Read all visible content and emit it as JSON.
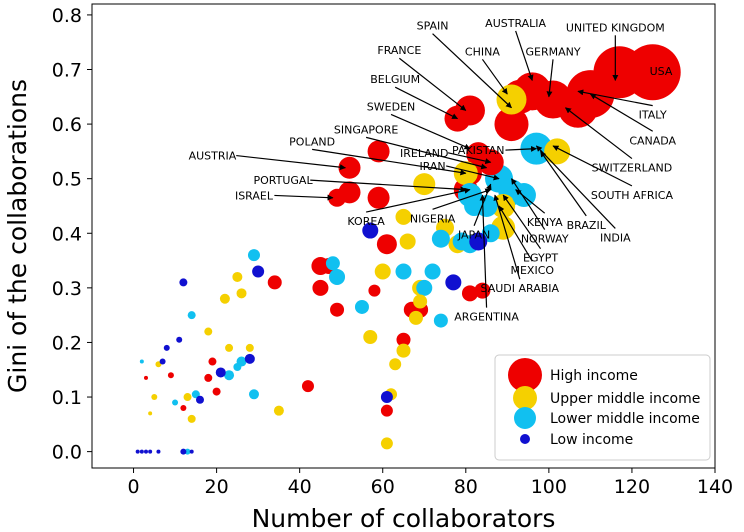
{
  "chart_data": {
    "type": "scatter",
    "xlabel": "Number of collaborators",
    "ylabel": "Gini of the collaborations",
    "xlim": [
      -10,
      140
    ],
    "ylim": [
      -0.03,
      0.82
    ],
    "xticks": [
      0,
      20,
      40,
      60,
      80,
      100,
      120,
      140
    ],
    "yticks": [
      0.0,
      0.1,
      0.2,
      0.3,
      0.4,
      0.5,
      0.6,
      0.7,
      0.8
    ],
    "ytick_labels": [
      "0.0",
      "0.1",
      "0.2",
      "0.3",
      "0.4",
      "0.5",
      "0.6",
      "0.7",
      "0.8"
    ],
    "grid": false,
    "legend_position": "bottom-right",
    "colors": {
      "high": "#ee0000",
      "upper": "#f5d000",
      "lower": "#11c0f0",
      "low": "#1010d0"
    },
    "series": [
      {
        "name": "High income",
        "key": "high",
        "points": [
          [
            125,
            0.695,
            28
          ],
          [
            117,
            0.695,
            26
          ],
          [
            110,
            0.655,
            24
          ],
          [
            107,
            0.63,
            20
          ],
          [
            101,
            0.645,
            19
          ],
          [
            96,
            0.66,
            19
          ],
          [
            93,
            0.65,
            17
          ],
          [
            91,
            0.6,
            17
          ],
          [
            81,
            0.625,
            15
          ],
          [
            78,
            0.61,
            13
          ],
          [
            86,
            0.53,
            13
          ],
          [
            83,
            0.545,
            12
          ],
          [
            81,
            0.51,
            12
          ],
          [
            80,
            0.48,
            12
          ],
          [
            59,
            0.55,
            11
          ],
          [
            52,
            0.52,
            11
          ],
          [
            52,
            0.475,
            11
          ],
          [
            49,
            0.465,
            9
          ],
          [
            59,
            0.465,
            11
          ],
          [
            61,
            0.38,
            10
          ],
          [
            45,
            0.34,
            9
          ],
          [
            45,
            0.3,
            8
          ],
          [
            47,
            0.34,
            8
          ],
          [
            49,
            0.26,
            7
          ],
          [
            34,
            0.31,
            7
          ],
          [
            67,
            0.26,
            8
          ],
          [
            69,
            0.26,
            8
          ],
          [
            81,
            0.29,
            8
          ],
          [
            84,
            0.295,
            8
          ],
          [
            65,
            0.205,
            7
          ],
          [
            42,
            0.12,
            6
          ],
          [
            61,
            0.075,
            6
          ],
          [
            58,
            0.295,
            6
          ],
          [
            20,
            0.11,
            4
          ],
          [
            19,
            0.165,
            4
          ],
          [
            18,
            0.135,
            4
          ],
          [
            12,
            0.08,
            3
          ],
          [
            9,
            0.14,
            3
          ],
          [
            3,
            0.135,
            2
          ]
        ]
      },
      {
        "name": "Upper middle income",
        "key": "upper",
        "points": [
          [
            91,
            0.645,
            15
          ],
          [
            102,
            0.55,
            13
          ],
          [
            89,
            0.45,
            12
          ],
          [
            89,
            0.41,
            12
          ],
          [
            80,
            0.51,
            12
          ],
          [
            70,
            0.49,
            11
          ],
          [
            75,
            0.41,
            9
          ],
          [
            78,
            0.38,
            9
          ],
          [
            65,
            0.43,
            8
          ],
          [
            66,
            0.385,
            8
          ],
          [
            60,
            0.33,
            8
          ],
          [
            69,
            0.3,
            8
          ],
          [
            69,
            0.275,
            7
          ],
          [
            68,
            0.245,
            7
          ],
          [
            57,
            0.21,
            7
          ],
          [
            65,
            0.185,
            7
          ],
          [
            63,
            0.16,
            6
          ],
          [
            61,
            0.015,
            6
          ],
          [
            62,
            0.105,
            6
          ],
          [
            25,
            0.32,
            5
          ],
          [
            22,
            0.28,
            5
          ],
          [
            26,
            0.29,
            5
          ],
          [
            18,
            0.22,
            4
          ],
          [
            23,
            0.19,
            4
          ],
          [
            28,
            0.19,
            4
          ],
          [
            35,
            0.075,
            5
          ],
          [
            14,
            0.06,
            4
          ],
          [
            13,
            0.1,
            4
          ],
          [
            5,
            0.1,
            3
          ],
          [
            4,
            0.07,
            2
          ],
          [
            6,
            0.16,
            3
          ]
        ]
      },
      {
        "name": "Lower middle income",
        "key": "lower",
        "points": [
          [
            97,
            0.555,
            16
          ],
          [
            88,
            0.5,
            14
          ],
          [
            91,
            0.475,
            13
          ],
          [
            94,
            0.47,
            12
          ],
          [
            81,
            0.47,
            12
          ],
          [
            85,
            0.45,
            11
          ],
          [
            82,
            0.45,
            10
          ],
          [
            86,
            0.4,
            9
          ],
          [
            81,
            0.38,
            9
          ],
          [
            79,
            0.385,
            9
          ],
          [
            74,
            0.39,
            9
          ],
          [
            72,
            0.33,
            8
          ],
          [
            65,
            0.33,
            8
          ],
          [
            70,
            0.3,
            8
          ],
          [
            74,
            0.24,
            7
          ],
          [
            55,
            0.265,
            7
          ],
          [
            49,
            0.32,
            8
          ],
          [
            48,
            0.345,
            7
          ],
          [
            29,
            0.36,
            6
          ],
          [
            29,
            0.105,
            5
          ],
          [
            26,
            0.165,
            5
          ],
          [
            25,
            0.155,
            4
          ],
          [
            23,
            0.14,
            5
          ],
          [
            14,
            0.25,
            4
          ],
          [
            15,
            0.105,
            4
          ],
          [
            10,
            0.09,
            3
          ],
          [
            13,
            0.0,
            3
          ],
          [
            2,
            0.165,
            2
          ]
        ]
      },
      {
        "name": "Low income",
        "key": "low",
        "points": [
          [
            57,
            0.405,
            8
          ],
          [
            83,
            0.385,
            9
          ],
          [
            77,
            0.31,
            8
          ],
          [
            61,
            0.1,
            6
          ],
          [
            30,
            0.33,
            6
          ],
          [
            28,
            0.17,
            5
          ],
          [
            21,
            0.145,
            5
          ],
          [
            16,
            0.095,
            4
          ],
          [
            12,
            0.31,
            4
          ],
          [
            11,
            0.205,
            3
          ],
          [
            8,
            0.19,
            3
          ],
          [
            7,
            0.165,
            3
          ],
          [
            12,
            0.0,
            3
          ],
          [
            6,
            0.0,
            2
          ],
          [
            4,
            0.0,
            2
          ],
          [
            3,
            0.0,
            2
          ],
          [
            2,
            0.0,
            2
          ],
          [
            1,
            0.0,
            2
          ],
          [
            14,
            0.0,
            2
          ]
        ]
      }
    ],
    "annotations": [
      {
        "text": "USA",
        "label": [
          127,
          0.69
        ],
        "target": null
      },
      {
        "text": "UNITED KINGDOM",
        "label": [
          116,
          0.77
        ],
        "target": [
          116,
          0.68
        ]
      },
      {
        "text": "AUSTRALIA",
        "label": [
          92,
          0.778
        ],
        "target": [
          96,
          0.68
        ]
      },
      {
        "text": "SPAIN",
        "label": [
          72,
          0.773
        ],
        "target": [
          91,
          0.63
        ]
      },
      {
        "text": "GERMANY",
        "label": [
          101,
          0.726
        ],
        "target": [
          100,
          0.65
        ]
      },
      {
        "text": "CHINA",
        "label": [
          84,
          0.726
        ],
        "target": [
          90,
          0.655
        ]
      },
      {
        "text": "FRANCE",
        "label": [
          64,
          0.728
        ],
        "target": [
          80,
          0.625
        ]
      },
      {
        "text": "BELGIUM",
        "label": [
          63,
          0.675
        ],
        "target": [
          78,
          0.61
        ]
      },
      {
        "text": "SWEDEN",
        "label": [
          62,
          0.625
        ],
        "target": [
          81,
          0.555
        ]
      },
      {
        "text": "SINGAPORE",
        "label": [
          56,
          0.583
        ],
        "target": [
          85,
          0.52
        ]
      },
      {
        "text": "PAKISTAN",
        "label": [
          83,
          0.545
        ],
        "target": [
          97,
          0.555
        ]
      },
      {
        "text": "POLAND",
        "label": [
          43,
          0.561
        ],
        "target": [
          80,
          0.51
        ]
      },
      {
        "text": "IRELAND",
        "label": [
          70,
          0.54
        ],
        "target": [
          86,
          0.53
        ]
      },
      {
        "text": "IRAN",
        "label": [
          72,
          0.516
        ],
        "target": [
          88,
          0.5
        ]
      },
      {
        "text": "AUSTRIA",
        "label": [
          19,
          0.535
        ],
        "target": [
          51,
          0.52
        ]
      },
      {
        "text": "PORTUGAL",
        "label": [
          36,
          0.49
        ],
        "target": [
          80,
          0.48
        ]
      },
      {
        "text": "ISRAEL",
        "label": [
          29,
          0.462
        ],
        "target": [
          48,
          0.465
        ]
      },
      {
        "text": "KOREA",
        "label": [
          56,
          0.415
        ],
        "target": [
          81,
          0.48
        ]
      },
      {
        "text": "NIGERIA",
        "label": [
          72,
          0.42
        ],
        "target": [
          86,
          0.48
        ]
      },
      {
        "text": "JAPAN",
        "label": [
          82,
          0.39
        ],
        "target": [
          86,
          0.49
        ]
      },
      {
        "text": "ITALY",
        "label": [
          125,
          0.61
        ],
        "target": [
          107,
          0.66
        ]
      },
      {
        "text": "CANADA",
        "label": [
          125,
          0.563
        ],
        "target": [
          110,
          0.655
        ]
      },
      {
        "text": "SWITZERLAND",
        "label": [
          120,
          0.513
        ],
        "target": [
          104,
          0.63
        ]
      },
      {
        "text": "SOUTH AFRICA",
        "label": [
          120,
          0.463
        ],
        "target": [
          101,
          0.56
        ]
      },
      {
        "text": "BRAZIL",
        "label": [
          109,
          0.408
        ],
        "target": [
          98,
          0.55
        ]
      },
      {
        "text": "INDIA",
        "label": [
          116,
          0.385
        ],
        "target": [
          97,
          0.56
        ]
      },
      {
        "text": "KENYA",
        "label": [
          99,
          0.413
        ],
        "target": [
          92,
          0.48
        ]
      },
      {
        "text": "NORWAY",
        "label": [
          99,
          0.383
        ],
        "target": [
          91,
          0.5
        ]
      },
      {
        "text": "EGYPT",
        "label": [
          98,
          0.348
        ],
        "target": [
          89,
          0.47
        ]
      },
      {
        "text": "MEXICO",
        "label": [
          96,
          0.325
        ],
        "target": [
          88,
          0.45
        ]
      },
      {
        "text": "SAUDI ARABIA",
        "label": [
          93,
          0.292
        ],
        "target": [
          87,
          0.47
        ]
      },
      {
        "text": "ARGENTINA",
        "label": [
          85,
          0.24
        ],
        "target": [
          84,
          0.47
        ]
      }
    ]
  }
}
